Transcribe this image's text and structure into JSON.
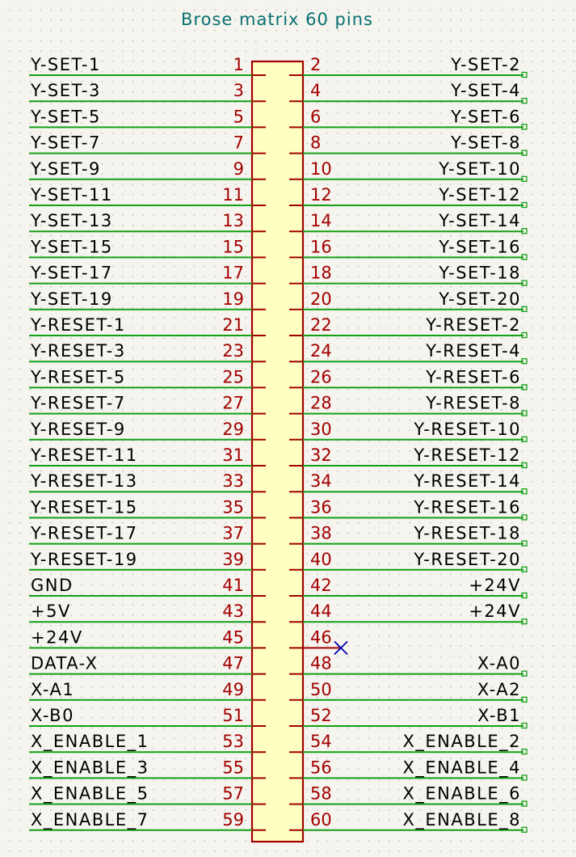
{
  "title": "Brose matrix 60 pins",
  "colors": {
    "wire": "#14a014",
    "pin": "#a30000",
    "body_fill": "#ffffc2",
    "body_stroke": "#a30000",
    "no_connect": "#0000b0",
    "title": "#0a7070"
  },
  "no_connect_pin": "46",
  "rows": [
    {
      "left_label": "Y-SET-1",
      "left_pin": "1",
      "right_pin": "2",
      "right_label": "Y-SET-2"
    },
    {
      "left_label": "Y-SET-3",
      "left_pin": "3",
      "right_pin": "4",
      "right_label": "Y-SET-4"
    },
    {
      "left_label": "Y-SET-5",
      "left_pin": "5",
      "right_pin": "6",
      "right_label": "Y-SET-6"
    },
    {
      "left_label": "Y-SET-7",
      "left_pin": "7",
      "right_pin": "8",
      "right_label": "Y-SET-8"
    },
    {
      "left_label": "Y-SET-9",
      "left_pin": "9",
      "right_pin": "10",
      "right_label": "Y-SET-10"
    },
    {
      "left_label": "Y-SET-11",
      "left_pin": "11",
      "right_pin": "12",
      "right_label": "Y-SET-12"
    },
    {
      "left_label": "Y-SET-13",
      "left_pin": "13",
      "right_pin": "14",
      "right_label": "Y-SET-14"
    },
    {
      "left_label": "Y-SET-15",
      "left_pin": "15",
      "right_pin": "16",
      "right_label": "Y-SET-16"
    },
    {
      "left_label": "Y-SET-17",
      "left_pin": "17",
      "right_pin": "18",
      "right_label": "Y-SET-18"
    },
    {
      "left_label": "Y-SET-19",
      "left_pin": "19",
      "right_pin": "20",
      "right_label": "Y-SET-20"
    },
    {
      "left_label": "Y-RESET-1",
      "left_pin": "21",
      "right_pin": "22",
      "right_label": "Y-RESET-2"
    },
    {
      "left_label": "Y-RESET-3",
      "left_pin": "23",
      "right_pin": "24",
      "right_label": "Y-RESET-4"
    },
    {
      "left_label": "Y-RESET-5",
      "left_pin": "25",
      "right_pin": "26",
      "right_label": "Y-RESET-6"
    },
    {
      "left_label": "Y-RESET-7",
      "left_pin": "27",
      "right_pin": "28",
      "right_label": "Y-RESET-8"
    },
    {
      "left_label": "Y-RESET-9",
      "left_pin": "29",
      "right_pin": "30",
      "right_label": "Y-RESET-10"
    },
    {
      "left_label": "Y-RESET-11",
      "left_pin": "31",
      "right_pin": "32",
      "right_label": "Y-RESET-12"
    },
    {
      "left_label": "Y-RESET-13",
      "left_pin": "33",
      "right_pin": "34",
      "right_label": "Y-RESET-14"
    },
    {
      "left_label": "Y-RESET-15",
      "left_pin": "35",
      "right_pin": "36",
      "right_label": "Y-RESET-16"
    },
    {
      "left_label": "Y-RESET-17",
      "left_pin": "37",
      "right_pin": "38",
      "right_label": "Y-RESET-18"
    },
    {
      "left_label": "Y-RESET-19",
      "left_pin": "39",
      "right_pin": "40",
      "right_label": "Y-RESET-20"
    },
    {
      "left_label": "GND",
      "left_pin": "41",
      "right_pin": "42",
      "right_label": "+24V"
    },
    {
      "left_label": "+5V",
      "left_pin": "43",
      "right_pin": "44",
      "right_label": "+24V"
    },
    {
      "left_label": "+24V",
      "left_pin": "45",
      "right_pin": "46",
      "right_label": ""
    },
    {
      "left_label": "DATA-X",
      "left_pin": "47",
      "right_pin": "48",
      "right_label": "X-A0"
    },
    {
      "left_label": "X-A1",
      "left_pin": "49",
      "right_pin": "50",
      "right_label": "X-A2"
    },
    {
      "left_label": "X-B0",
      "left_pin": "51",
      "right_pin": "52",
      "right_label": "X-B1"
    },
    {
      "left_label": "X_ENABLE_1",
      "left_pin": "53",
      "right_pin": "54",
      "right_label": "X_ENABLE_2"
    },
    {
      "left_label": "X_ENABLE_3",
      "left_pin": "55",
      "right_pin": "56",
      "right_label": "X_ENABLE_4"
    },
    {
      "left_label": "X_ENABLE_5",
      "left_pin": "57",
      "right_pin": "58",
      "right_label": "X_ENABLE_6"
    },
    {
      "left_label": "X_ENABLE_7",
      "left_pin": "59",
      "right_pin": "60",
      "right_label": "X_ENABLE_8"
    }
  ]
}
